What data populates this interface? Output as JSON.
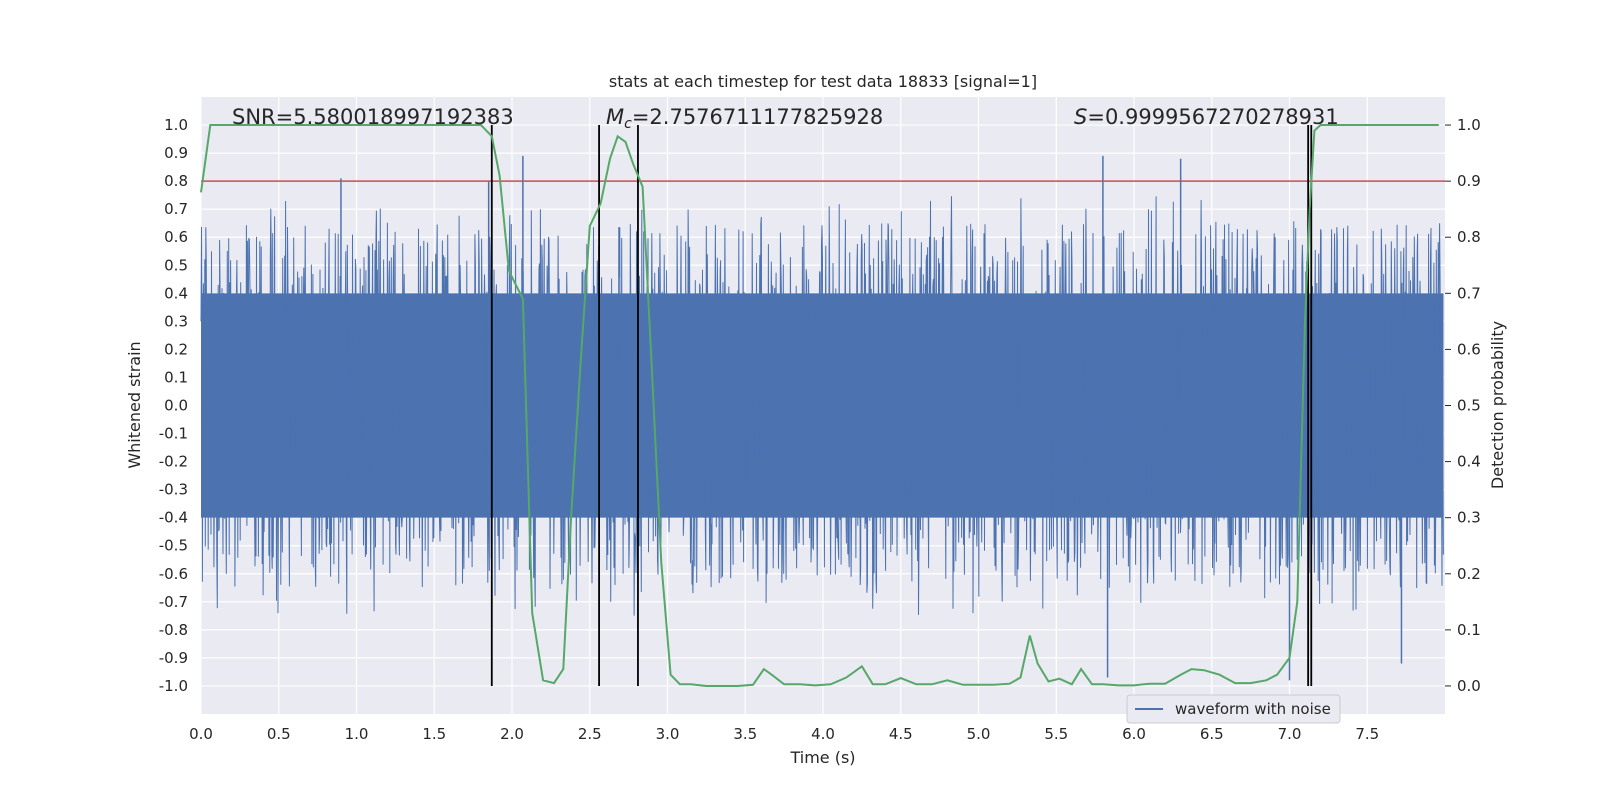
{
  "chart_data": {
    "type": "line",
    "title": "stats at each timestep for test data 18833 [signal=1]",
    "xlabel": "Time (s)",
    "ylabel_left": "Whitened strain",
    "ylabel_right": "Detection probability",
    "xlim": [
      0,
      8
    ],
    "ylim_left": [
      -1.1,
      1.1
    ],
    "ylim_right": [
      -0.05,
      1.05
    ],
    "x_ticks": [
      "0.0",
      "0.5",
      "1.0",
      "1.5",
      "2.0",
      "2.5",
      "3.0",
      "3.5",
      "4.0",
      "4.5",
      "5.0",
      "5.5",
      "6.0",
      "6.5",
      "7.0",
      "7.5"
    ],
    "y_ticks_left": [
      "1.0",
      "0.9",
      "0.8",
      "0.7",
      "0.6",
      "0.5",
      "0.4",
      "0.3",
      "0.2",
      "0.1",
      "0.0",
      "-0.1",
      "-0.2",
      "-0.3",
      "-0.4",
      "-0.5",
      "-0.6",
      "-0.7",
      "-0.8",
      "-0.9",
      "-1.0"
    ],
    "y_ticks_right": [
      "1.0",
      "0.9",
      "0.8",
      "0.7",
      "0.6",
      "0.5",
      "0.4",
      "0.3",
      "0.2",
      "0.1",
      "0.0"
    ],
    "grid": true,
    "legend_position": "bottom-right",
    "annotations": {
      "snr": "SNR=5.580018997192383",
      "mc_symbol": "M",
      "mc_sub": "c",
      "mc_value": "=2.7576711177825928",
      "s_symbol": "S",
      "s_value": "=0.9999567270278931"
    },
    "series": [
      {
        "name": "waveform with noise",
        "axis": "left",
        "color": "#4c72b0",
        "style": "dense noise band",
        "band_lower": -0.4,
        "band_upper": 0.4,
        "peak_max": 0.89,
        "peak_min": -0.99
      },
      {
        "axis": "right",
        "color": "#55a868",
        "x": [
          0.0,
          0.06,
          0.12,
          0.3,
          0.6,
          0.9,
          1.2,
          1.5,
          1.8,
          1.87,
          1.92,
          1.98,
          2.07,
          2.13,
          2.2,
          2.27,
          2.33,
          2.38,
          2.44,
          2.5,
          2.57,
          2.63,
          2.68,
          2.73,
          2.78,
          2.84,
          2.9,
          2.96,
          3.02,
          3.08,
          3.15,
          3.25,
          3.35,
          3.45,
          3.55,
          3.62,
          3.67,
          3.75,
          3.85,
          3.95,
          4.05,
          4.15,
          4.25,
          4.32,
          4.4,
          4.5,
          4.6,
          4.7,
          4.8,
          4.9,
          5.0,
          5.1,
          5.2,
          5.27,
          5.33,
          5.38,
          5.45,
          5.52,
          5.6,
          5.66,
          5.73,
          5.8,
          5.9,
          6.0,
          6.1,
          6.2,
          6.3,
          6.37,
          6.45,
          6.55,
          6.65,
          6.75,
          6.85,
          6.92,
          7.0,
          7.05,
          7.1,
          7.13,
          7.16,
          7.2,
          7.25,
          7.3,
          7.5,
          7.7,
          7.96
        ],
        "y": [
          0.88,
          1.0,
          1.0,
          1.0,
          1.0,
          1.0,
          1.0,
          1.0,
          1.0,
          0.98,
          0.91,
          0.74,
          0.69,
          0.13,
          0.01,
          0.005,
          0.03,
          0.3,
          0.57,
          0.82,
          0.86,
          0.94,
          0.98,
          0.97,
          0.93,
          0.89,
          0.56,
          0.22,
          0.02,
          0.003,
          0.003,
          0.0,
          0.0,
          0.0,
          0.002,
          0.03,
          0.02,
          0.003,
          0.003,
          0.001,
          0.003,
          0.015,
          0.035,
          0.003,
          0.003,
          0.014,
          0.003,
          0.003,
          0.01,
          0.002,
          0.002,
          0.002,
          0.004,
          0.015,
          0.09,
          0.04,
          0.008,
          0.013,
          0.003,
          0.03,
          0.003,
          0.003,
          0.001,
          0.001,
          0.004,
          0.004,
          0.02,
          0.03,
          0.028,
          0.02,
          0.005,
          0.005,
          0.01,
          0.02,
          0.05,
          0.15,
          0.65,
          0.85,
          0.99,
          1.0,
          1.0,
          1.0,
          1.0,
          1.0,
          1.0
        ]
      }
    ],
    "threshold_line": {
      "axis": "left",
      "y": 0.8,
      "color": "#c44e52"
    },
    "vertical_lines": [
      1.87,
      2.56,
      2.81,
      7.12,
      7.14
    ],
    "legend": {
      "label": "waveform with noise"
    }
  }
}
